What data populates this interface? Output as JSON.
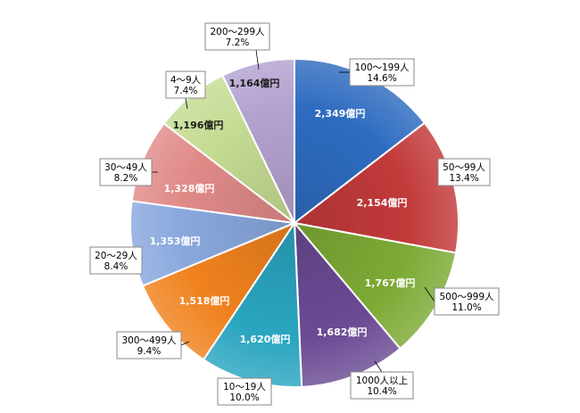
{
  "chart_data": {
    "type": "pie",
    "title": "",
    "start_angle_deg": 0,
    "direction": "clockwise",
    "slices": [
      {
        "category": "100〜199人",
        "value": 2349,
        "value_label": "2,349億円",
        "percent_label": "14.6%",
        "color": "#2e6cc0"
      },
      {
        "category": "50〜99人",
        "value": 2154,
        "value_label": "2,154億円",
        "percent_label": "13.4%",
        "color": "#c23a3a"
      },
      {
        "category": "500〜999人",
        "value": 1767,
        "value_label": "1,767億円",
        "percent_label": "11.0%",
        "color": "#7daa35"
      },
      {
        "category": "1000人以上",
        "value": 1682,
        "value_label": "1,682億円",
        "percent_label": "10.4%",
        "color": "#6a4a94"
      },
      {
        "category": "10〜19人",
        "value": 1620,
        "value_label": "1,620億円",
        "percent_label": "10.0%",
        "color": "#2aa5c0"
      },
      {
        "category": "300〜499人",
        "value": 1518,
        "value_label": "1,518億円",
        "percent_label": "9.4%",
        "color": "#f0821e"
      },
      {
        "category": "20〜29人",
        "value": 1353,
        "value_label": "1,353億円",
        "percent_label": "8.4%",
        "color": "#8aa8de"
      },
      {
        "category": "30〜49人",
        "value": 1328,
        "value_label": "1,328億円",
        "percent_label": "8.2%",
        "color": "#e08a88"
      },
      {
        "category": "4〜9人",
        "value": 1196,
        "value_label": "1,196億円",
        "percent_label": "7.4%",
        "color": "#c5dc93"
      },
      {
        "category": "200〜299人",
        "value": 1164,
        "value_label": "1,164億円",
        "percent_label": "7.2%",
        "color": "#b3a2cf"
      }
    ]
  }
}
